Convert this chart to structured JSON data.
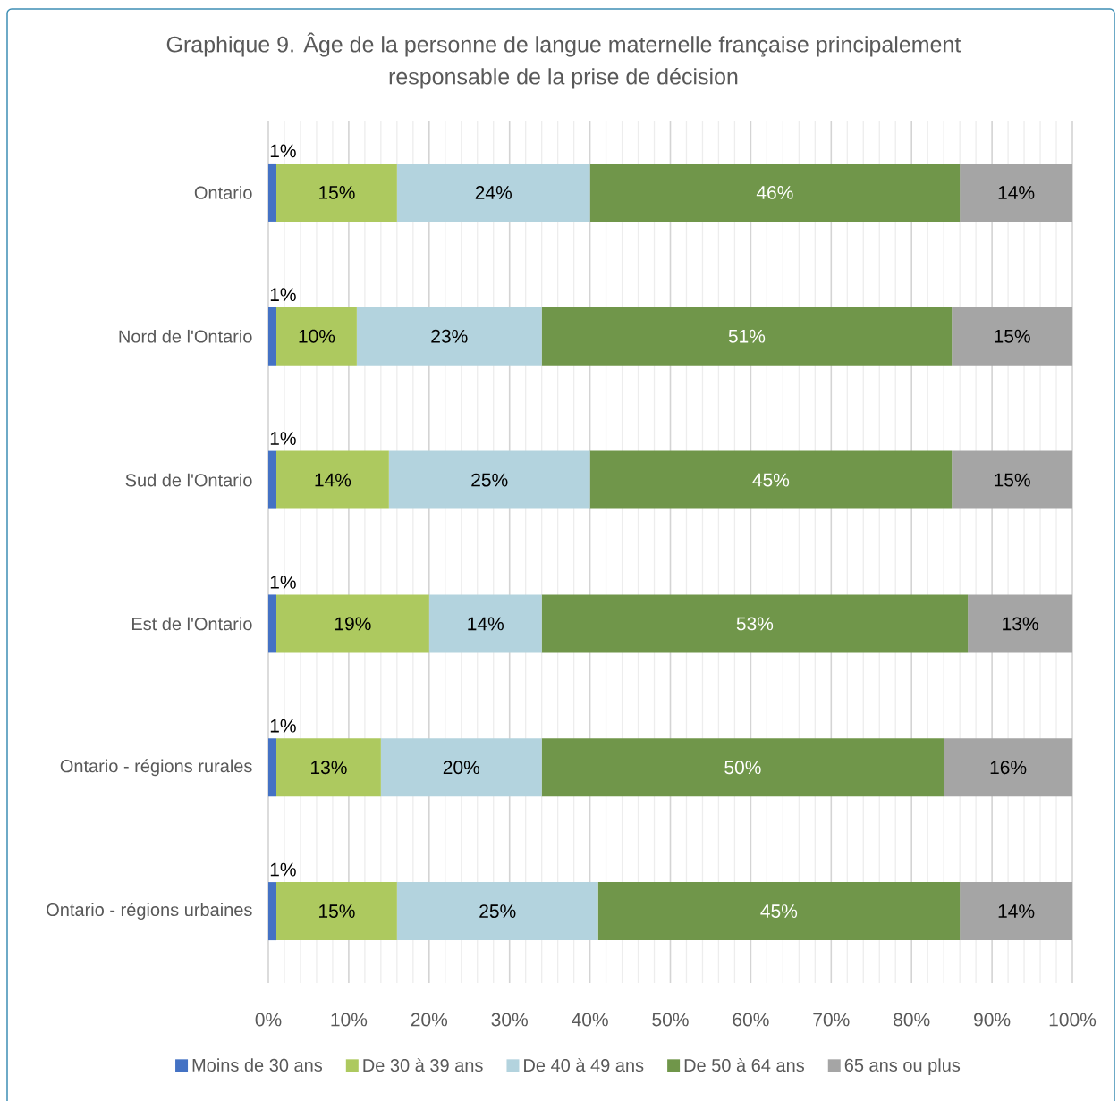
{
  "chart_data": {
    "type": "bar",
    "orientation": "horizontal",
    "stacked": true,
    "title": "Graphique 9. Âge de la personne de langue maternelle française principalement responsable de la prise de décision",
    "categories": [
      "Ontario",
      "Nord de l'Ontario",
      "Sud de l'Ontario",
      "Est de l'Ontario",
      "Ontario - régions rurales",
      "Ontario - régions urbaines"
    ],
    "series": [
      {
        "name": "Moins de 30 ans",
        "color": "#4472c4",
        "values": [
          1,
          1,
          1,
          1,
          1,
          1
        ],
        "value_labels": [
          "1%",
          "1%",
          "1%",
          "1%",
          "1%",
          "1%"
        ]
      },
      {
        "name": "De 30 à 39 ans",
        "color": "#adc95f",
        "values": [
          15,
          10,
          14,
          19,
          13,
          15
        ],
        "value_labels": [
          "15%",
          "10%",
          "14%",
          "19%",
          "13%",
          "15%"
        ]
      },
      {
        "name": "De 40 à 49 ans",
        "color": "#b3d3de",
        "values": [
          24,
          23,
          25,
          14,
          20,
          25
        ],
        "value_labels": [
          "24%",
          "23%",
          "25%",
          "14%",
          "20%",
          "25%"
        ]
      },
      {
        "name": "De 50 à 64 ans",
        "color": "#70964a",
        "values": [
          46,
          51,
          45,
          53,
          50,
          45
        ],
        "value_labels": [
          "46%",
          "51%",
          "45%",
          "53%",
          "50%",
          "45%"
        ]
      },
      {
        "name": "65 ans ou plus",
        "color": "#a5a5a5",
        "values": [
          14,
          15,
          15,
          13,
          16,
          14
        ],
        "value_labels": [
          "14%",
          "15%",
          "15%",
          "13%",
          "16%",
          "14%"
        ]
      }
    ],
    "xlim": [
      0,
      100
    ],
    "xticks": [
      {
        "value": 0,
        "label": "0%"
      },
      {
        "value": 10,
        "label": "10%"
      },
      {
        "value": 20,
        "label": "20%"
      },
      {
        "value": 30,
        "label": "30%"
      },
      {
        "value": 40,
        "label": "40%"
      },
      {
        "value": 50,
        "label": "50%"
      },
      {
        "value": 60,
        "label": "60%"
      },
      {
        "value": 70,
        "label": "70%"
      },
      {
        "value": 80,
        "label": "80%"
      },
      {
        "value": 90,
        "label": "90%"
      },
      {
        "value": 100,
        "label": "100%"
      }
    ],
    "grid": "x",
    "legend": "bottom"
  }
}
